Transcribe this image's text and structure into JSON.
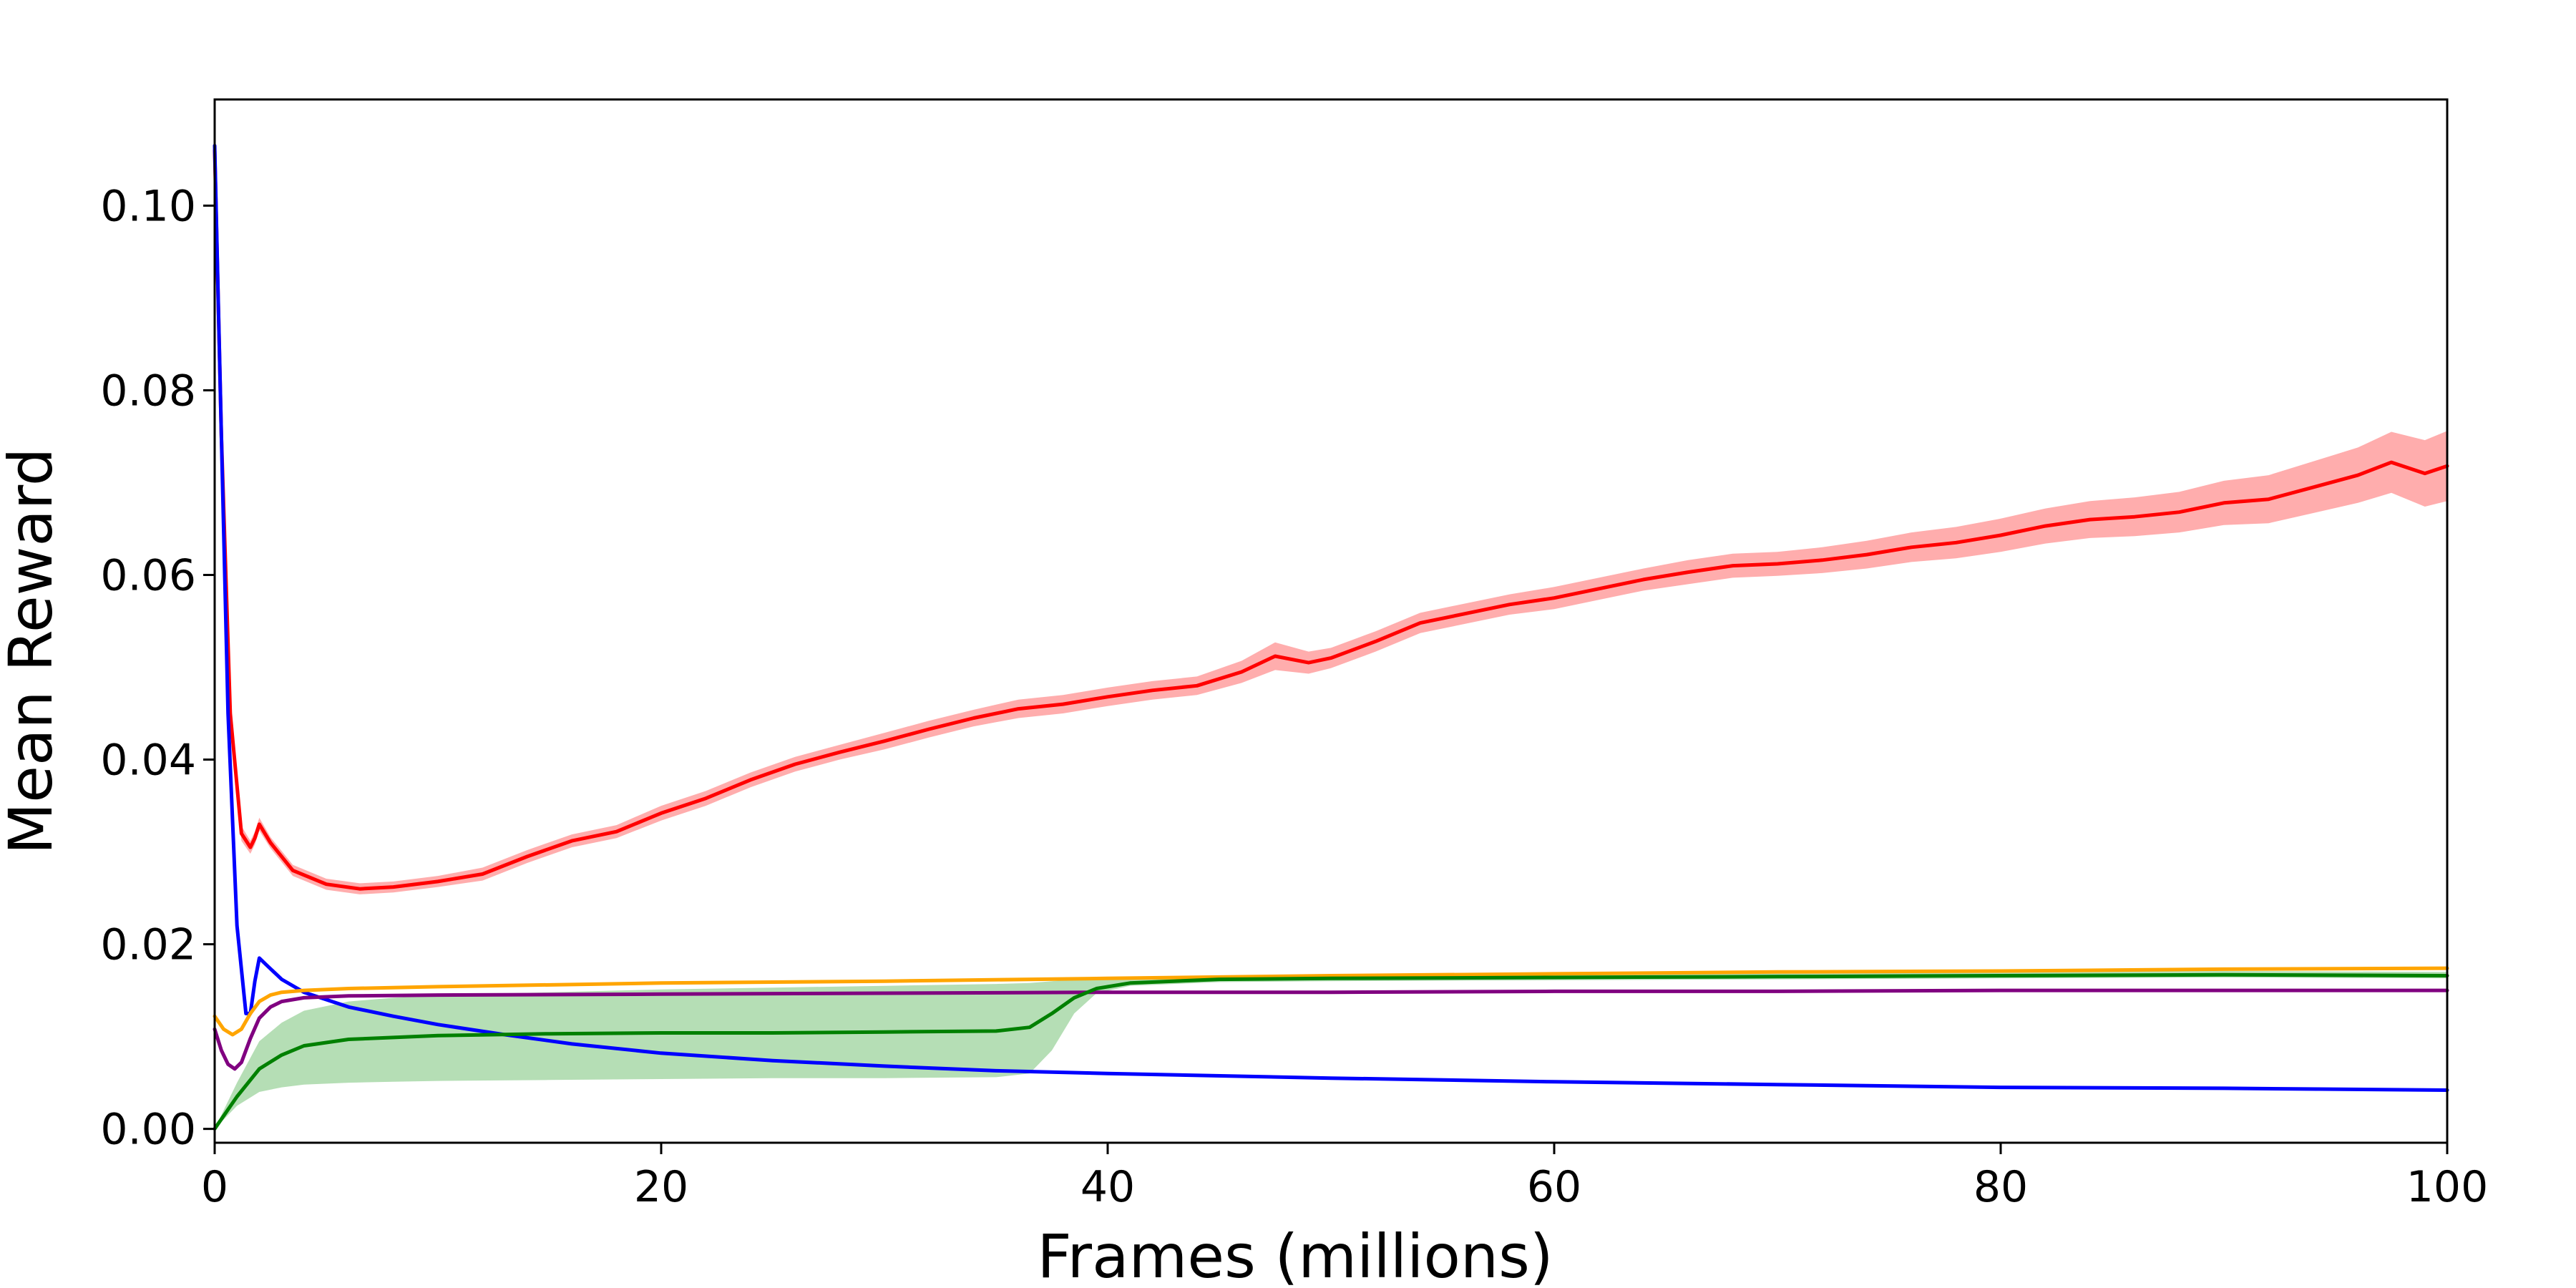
{
  "chart_data": {
    "type": "line",
    "title": "",
    "xlabel": "Frames (millions)",
    "ylabel": "Mean Reward",
    "xlim": [
      0,
      100
    ],
    "ylim": [
      -0.0015,
      0.1115
    ],
    "x_ticks": [
      {
        "value": 0,
        "label": "0"
      },
      {
        "value": 20,
        "label": "20"
      },
      {
        "value": 40,
        "label": "40"
      },
      {
        "value": 60,
        "label": "60"
      },
      {
        "value": 80,
        "label": "80"
      },
      {
        "value": 100,
        "label": "100"
      }
    ],
    "y_ticks": [
      {
        "value": 0.0,
        "label": "0.00"
      },
      {
        "value": 0.02,
        "label": "0.02"
      },
      {
        "value": 0.04,
        "label": "0.04"
      },
      {
        "value": 0.06,
        "label": "0.06"
      },
      {
        "value": 0.08,
        "label": "0.08"
      },
      {
        "value": 0.1,
        "label": "0.10"
      }
    ],
    "grid": false,
    "legend": "none",
    "series": [
      {
        "color": "#ff0000",
        "band_color": "#ff9999",
        "x": [
          0,
          0.3,
          0.7,
          1.2,
          1.6,
          1.8,
          2.0,
          2.5,
          3.5,
          5,
          6.5,
          8,
          10,
          12,
          14,
          16,
          18,
          20,
          22,
          24,
          26,
          28,
          30,
          32,
          34,
          36,
          38,
          40,
          42,
          44,
          46,
          47.5,
          49,
          50,
          52,
          54,
          56,
          58,
          60,
          62,
          64,
          66,
          68,
          70,
          72,
          74,
          76,
          78,
          80,
          82,
          84,
          86,
          88,
          90,
          92,
          94,
          96,
          97.5,
          99,
          100
        ],
        "y": [
          0.106,
          0.075,
          0.045,
          0.032,
          0.0305,
          0.0315,
          0.033,
          0.031,
          0.028,
          0.0265,
          0.026,
          0.0262,
          0.0268,
          0.0276,
          0.0295,
          0.0312,
          0.0322,
          0.0342,
          0.0358,
          0.0378,
          0.0395,
          0.0408,
          0.042,
          0.0433,
          0.0445,
          0.0455,
          0.046,
          0.0468,
          0.0475,
          0.048,
          0.0495,
          0.0512,
          0.0505,
          0.051,
          0.0528,
          0.0548,
          0.0558,
          0.0568,
          0.0575,
          0.0585,
          0.0595,
          0.0603,
          0.061,
          0.0612,
          0.0616,
          0.0622,
          0.063,
          0.0635,
          0.0643,
          0.0653,
          0.066,
          0.0663,
          0.0668,
          0.0678,
          0.0682,
          0.0695,
          0.0708,
          0.0722,
          0.071,
          0.0718
        ],
        "band_halfwidth": [
          0.0015,
          0.0012,
          0.0009,
          0.0008,
          0.0007,
          0.0007,
          0.0007,
          0.0006,
          0.0006,
          0.0006,
          0.0006,
          0.0006,
          0.0006,
          0.0007,
          0.0007,
          0.0007,
          0.0007,
          0.0008,
          0.0008,
          0.0008,
          0.0008,
          0.0008,
          0.0009,
          0.0009,
          0.0009,
          0.001,
          0.001,
          0.001,
          0.001,
          0.001,
          0.0012,
          0.0015,
          0.0012,
          0.0011,
          0.0011,
          0.0011,
          0.0011,
          0.0011,
          0.0012,
          0.0012,
          0.0012,
          0.0013,
          0.0013,
          0.0013,
          0.0014,
          0.0015,
          0.0016,
          0.0017,
          0.0018,
          0.0019,
          0.002,
          0.0021,
          0.0022,
          0.0024,
          0.0026,
          0.0028,
          0.003,
          0.0033,
          0.0036,
          0.0038
        ]
      },
      {
        "color": "#0000ff",
        "x": [
          0,
          0.3,
          0.6,
          1.0,
          1.4,
          1.6,
          1.8,
          2.0,
          2.3,
          3,
          4,
          5,
          6,
          8,
          10,
          13,
          16,
          20,
          25,
          30,
          35,
          40,
          50,
          60,
          70,
          80,
          90,
          100
        ],
        "y": [
          0.1065,
          0.075,
          0.045,
          0.022,
          0.0125,
          0.0125,
          0.016,
          0.0185,
          0.0178,
          0.0162,
          0.0148,
          0.014,
          0.0132,
          0.0122,
          0.0113,
          0.0102,
          0.0092,
          0.0082,
          0.0074,
          0.0068,
          0.0063,
          0.006,
          0.0055,
          0.0051,
          0.0048,
          0.0045,
          0.0044,
          0.0042
        ]
      },
      {
        "color": "#ffa500",
        "x": [
          0,
          0.4,
          0.8,
          1.2,
          1.6,
          2.0,
          2.5,
          3,
          4,
          6,
          10,
          20,
          30,
          40,
          50,
          60,
          70,
          80,
          90,
          100
        ],
        "y": [
          0.0122,
          0.0108,
          0.0102,
          0.0108,
          0.0125,
          0.0138,
          0.0145,
          0.0148,
          0.015,
          0.0152,
          0.0154,
          0.0158,
          0.016,
          0.0163,
          0.0166,
          0.0168,
          0.017,
          0.0171,
          0.0173,
          0.0174
        ]
      },
      {
        "color": "#800080",
        "x": [
          0,
          0.3,
          0.6,
          0.9,
          1.2,
          1.6,
          2.0,
          2.5,
          3,
          4,
          6,
          10,
          20,
          30,
          40,
          50,
          60,
          70,
          80,
          90,
          100
        ],
        "y": [
          0.0108,
          0.0085,
          0.007,
          0.0065,
          0.0072,
          0.0098,
          0.012,
          0.0132,
          0.0138,
          0.0142,
          0.0144,
          0.0145,
          0.0146,
          0.0147,
          0.0148,
          0.0148,
          0.0149,
          0.0149,
          0.015,
          0.015,
          0.015
        ]
      },
      {
        "color": "#008000",
        "band_color": "#a3d6a3",
        "x": [
          0,
          1,
          2,
          3,
          4,
          6,
          8,
          10,
          15,
          20,
          25,
          30,
          35,
          36.5,
          37.5,
          38.5,
          39.5,
          41,
          45,
          50,
          60,
          70,
          80,
          90,
          100
        ],
        "y": [
          0.0,
          0.0035,
          0.0065,
          0.008,
          0.009,
          0.0097,
          0.0099,
          0.0101,
          0.0103,
          0.0104,
          0.0104,
          0.0105,
          0.0106,
          0.011,
          0.0125,
          0.0142,
          0.0152,
          0.0158,
          0.0162,
          0.0163,
          0.0164,
          0.0165,
          0.0166,
          0.0167,
          0.0166
        ],
        "band_low": [
          0.0,
          0.0025,
          0.004,
          0.0045,
          0.0048,
          0.005,
          0.0051,
          0.0052,
          0.0053,
          0.0054,
          0.0055,
          0.0055,
          0.0056,
          0.006,
          0.0085,
          0.0125,
          0.0147,
          0.0155,
          0.0159,
          0.016,
          0.0161,
          0.0162,
          0.0163,
          0.0164,
          0.0163
        ],
        "band_high": [
          0.0,
          0.005,
          0.0095,
          0.0115,
          0.0128,
          0.0138,
          0.0142,
          0.0145,
          0.0148,
          0.0151,
          0.0153,
          0.0155,
          0.0157,
          0.0158,
          0.016,
          0.0162,
          0.0164,
          0.0165,
          0.0166,
          0.0167,
          0.0168,
          0.0169,
          0.017,
          0.0171,
          0.017
        ]
      }
    ]
  }
}
